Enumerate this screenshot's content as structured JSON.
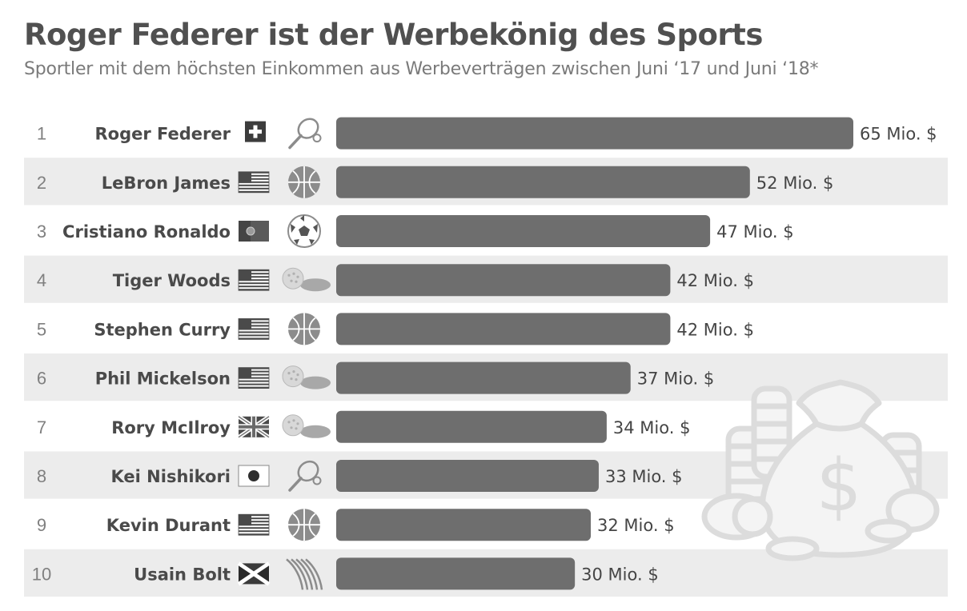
{
  "header": {
    "title": "Roger Federer ist der Werbekönig des Sports",
    "subtitle": "Sportler mit dem höchsten Einkommen aus Werbeverträgen zwischen Juni ‘17 und Juni ‘18*"
  },
  "colors": {
    "bar": "#6e6e6e",
    "stripe": "#ececec",
    "icon": "#8c8c8c",
    "decoration": "#dcdcdc"
  },
  "chart_data": {
    "type": "bar",
    "orientation": "horizontal",
    "title": "Roger Federer ist der Werbekönig des Sports",
    "subtitle": "Sportler mit dem höchsten Einkommen aus Werbeverträgen zwischen Juni ‘17 und Juni ‘18*",
    "xlabel": "",
    "ylabel": "",
    "unit": "Mio. $",
    "xlim": [
      0,
      65
    ],
    "grid": false,
    "ranks": [
      "1",
      "2",
      "3",
      "4",
      "5",
      "6",
      "7",
      "8",
      "9",
      "10"
    ],
    "categories": [
      "Roger Federer",
      "LeBron James",
      "Cristiano Ronaldo",
      "Tiger Woods",
      "Stephen Curry",
      "Phil Mickelson",
      "Rory McIlroy",
      "Kei Nishikori",
      "Kevin Durant",
      "Usain Bolt"
    ],
    "values": [
      65,
      52,
      47,
      42,
      42,
      37,
      34,
      33,
      32,
      30
    ],
    "value_labels": [
      "65 Mio. $",
      "52 Mio. $",
      "47 Mio. $",
      "42 Mio. $",
      "42 Mio. $",
      "37 Mio. $",
      "34 Mio. $",
      "33 Mio. $",
      "32 Mio. $",
      "30 Mio. $"
    ],
    "flags": [
      "switzerland-flag",
      "usa-flag",
      "portugal-flag",
      "usa-flag",
      "usa-flag",
      "usa-flag",
      "uk-flag",
      "japan-flag",
      "usa-flag",
      "jamaica-flag"
    ],
    "sport_icons": [
      "tennis-icon",
      "basketball-icon",
      "soccer-ball-icon",
      "golf-icon",
      "basketball-icon",
      "golf-icon",
      "golf-icon",
      "tennis-icon",
      "basketball-icon",
      "running-track-icon"
    ]
  }
}
